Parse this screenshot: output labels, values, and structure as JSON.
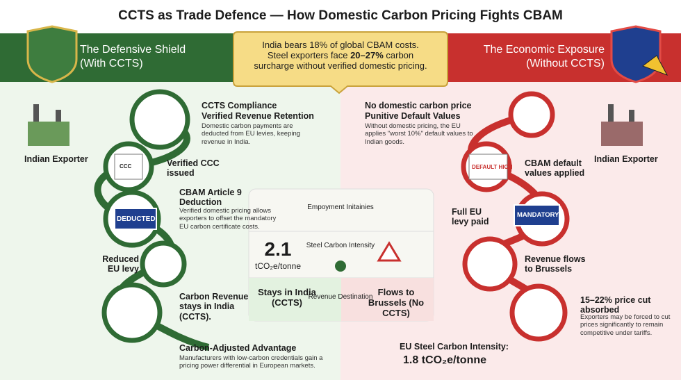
{
  "title": "CCTS as Trade Defence — How Domestic Carbon Pricing Fights CBAM",
  "left_header": {
    "title": "The Defensive Shield",
    "subtitle": "(With CCTS)"
  },
  "right_header": {
    "title": "The Economic Exposure",
    "subtitle": "(Without CCTS)"
  },
  "banner": {
    "line1": "India bears 18% of global CBAM costs.",
    "line2_start": "Steel exporters face ",
    "line2_bold": "20–27%",
    "line2_end": " carbon",
    "line3": "surcharge without verified domestic pricing."
  },
  "left_flow": {
    "exporter": "Indian Exporter",
    "steps": [
      {
        "title": "CCTS Compliance",
        "subtitle": "Verified Revenue Retention",
        "body": "Domestic carbon payments are deducted from EU levies, keeping revenue in India."
      },
      {
        "title": "Verified CCC issued"
      },
      {
        "title": "CBAM Article 9 Deduction",
        "body": "Verified domestic pricing allows exporters to offset the mandatory EU carbon certificate costs."
      },
      {
        "title": "Reduced EU levy"
      },
      {
        "title": "Carbon Revenue stays in India (CCTS)."
      },
      {
        "title": "Carbon-Adjusted Advantage",
        "body": "Manufacturers with low-carbon credentials gain a pricing power differential in European markets."
      }
    ],
    "badges": {
      "certificate": "CCC",
      "stamp": "DEDUCTED"
    }
  },
  "right_flow": {
    "exporter": "Indian Exporter",
    "steps": [
      {
        "title": "No domestic carbon price",
        "subtitle": "Punitive Default Values",
        "body": "Without domestic pricing, the EU applies \"worst 10%\" default values to Indian goods."
      },
      {
        "title": "CBAM default values applied"
      },
      {
        "title": "Full EU levy paid"
      },
      {
        "title": "Revenue flows to Brussels"
      },
      {
        "title": "15–22% price cut absorbed",
        "body": "Exporters may be forced to cut prices significantly to remain competitive under tariffs."
      }
    ],
    "badges": {
      "document": "DEFAULT HIGH",
      "stamp": "MANDATORY"
    },
    "footer": {
      "label": "EU Steel Carbon Intensity:",
      "value": "1.8 tCO₂e/tonne"
    }
  },
  "comparison": {
    "rows": [
      {
        "label": "Empoyment Initainies"
      },
      {
        "label": "Steel Carbon Intensity",
        "left_value": "2.1",
        "left_unit": "tCO₂e/tonne"
      },
      {
        "label": "Revenue Destination",
        "left": "Stays in India (CCTS)",
        "right": "Flows to Brussels (No CCTS)"
      }
    ]
  }
}
